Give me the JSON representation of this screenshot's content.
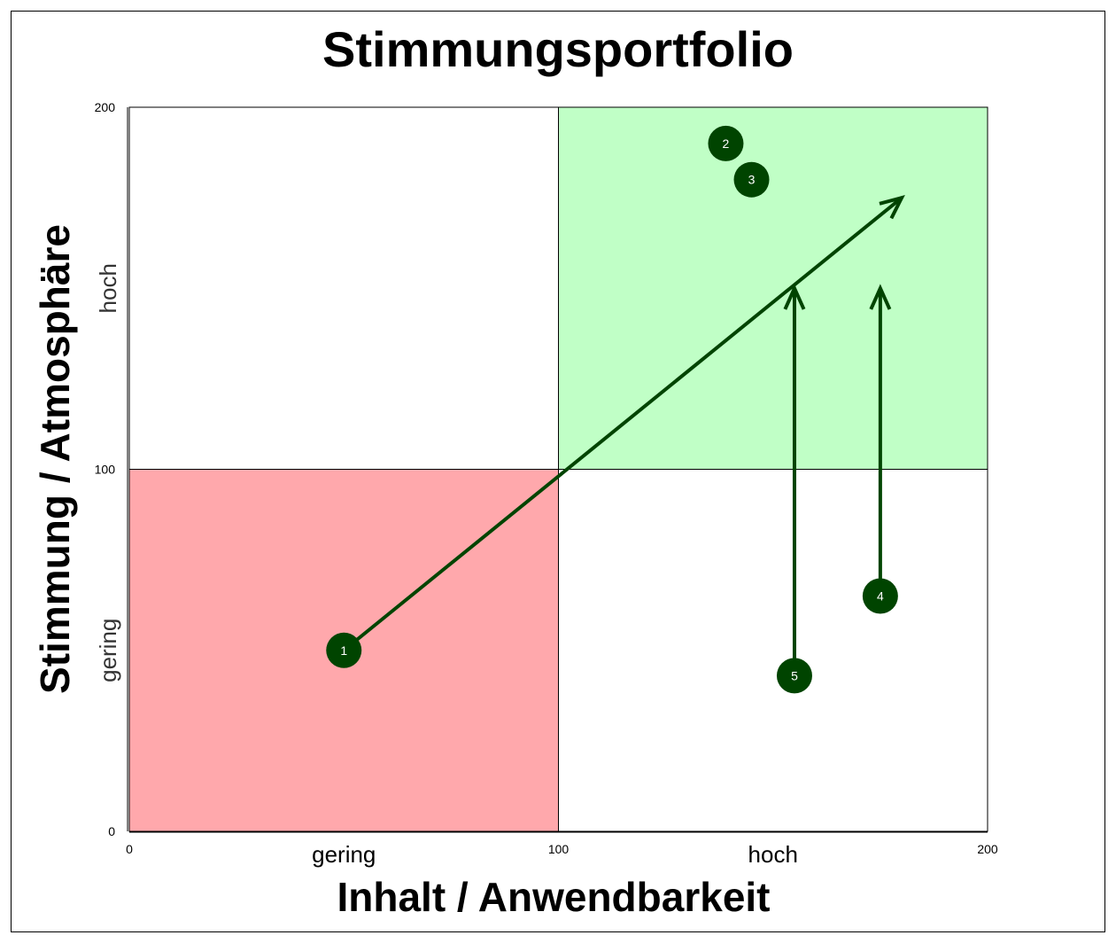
{
  "chart_data": {
    "type": "scatter",
    "title": "Stimmungsportfolio",
    "xlabel": "Inhalt / Anwendbarkeit",
    "ylabel": "Stimmung / Atmosphäre",
    "xlim": [
      0,
      200
    ],
    "ylim": [
      0,
      200
    ],
    "x_ticks": [
      "0",
      "100",
      "200"
    ],
    "y_ticks": [
      "0",
      "100",
      "200"
    ],
    "x_zone_labels": [
      {
        "text": "gering",
        "at": 50
      },
      {
        "text": "hoch",
        "at": 150
      }
    ],
    "y_zone_labels": [
      {
        "text": "gering",
        "at": 50
      },
      {
        "text": "hoch",
        "at": 150
      }
    ],
    "quadrants": [
      {
        "x": [
          0,
          100
        ],
        "y": [
          0,
          100
        ],
        "color": "#ffa8ac"
      },
      {
        "x": [
          100,
          200
        ],
        "y": [
          100,
          200
        ],
        "color": "#c0ffc6"
      }
    ],
    "points": [
      {
        "label": "1",
        "x": 50,
        "y": 50
      },
      {
        "label": "2",
        "x": 139,
        "y": 190
      },
      {
        "label": "3",
        "x": 145,
        "y": 180
      },
      {
        "label": "4",
        "x": 175,
        "y": 65
      },
      {
        "label": "5",
        "x": 155,
        "y": 43
      }
    ],
    "arrows": [
      {
        "from": [
          50,
          50
        ],
        "to": [
          180,
          175
        ]
      },
      {
        "from": [
          155,
          43
        ],
        "to": [
          155,
          150
        ]
      },
      {
        "from": [
          175,
          65
        ],
        "to": [
          175,
          150
        ]
      }
    ],
    "point_color": "#004400",
    "arrow_color": "#004400"
  }
}
